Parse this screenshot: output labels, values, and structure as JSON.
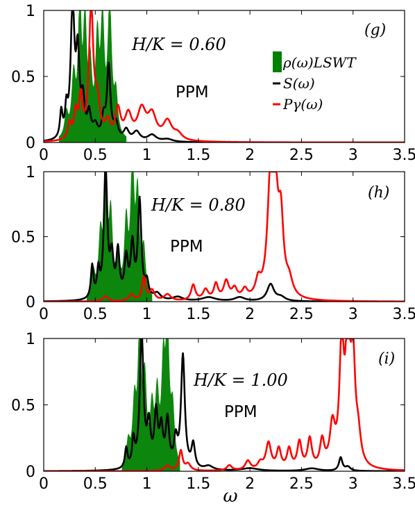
{
  "chart_data": [
    {
      "type": "line",
      "id": "g",
      "panel_label": "(g)",
      "field_label": "H/K = 0.60",
      "phase_label": "PPM",
      "xlim": [
        0,
        3.5
      ],
      "ylim": [
        0,
        1
      ],
      "x_ticks": [
        "0",
        "0.5",
        "1",
        "1.5",
        "2",
        "2.5",
        "3",
        "3.5"
      ],
      "y_ticks": [
        "0",
        "0.5",
        "1"
      ],
      "legend": {
        "placement": "upper-right",
        "entries": [
          {
            "label": "ρ(ω)LSWT",
            "color": "#008000",
            "kind": "fill"
          },
          {
            "label": "S(ω)",
            "color": "#000000",
            "kind": "line"
          },
          {
            "label": "Pγ(ω)",
            "color": "#ff0000",
            "kind": "line"
          }
        ]
      },
      "series": [
        {
          "name": "ρ(ω)LSWT",
          "color": "#008000",
          "kind": "fill",
          "peaks": [
            [
              0.22,
              0.18,
              0.02
            ],
            [
              0.29,
              0.45,
              0.022
            ],
            [
              0.35,
              1.0,
              0.018
            ],
            [
              0.4,
              0.85,
              0.018
            ],
            [
              0.45,
              0.5,
              0.02
            ],
            [
              0.52,
              0.7,
              0.02
            ],
            [
              0.57,
              0.85,
              0.02
            ],
            [
              0.64,
              1.0,
              0.022
            ],
            [
              0.7,
              0.3,
              0.02
            ]
          ],
          "range": [
            0.15,
            0.8
          ]
        },
        {
          "name": "S(ω)",
          "color": "#000000",
          "kind": "line",
          "peaks": [
            [
              0.17,
              0.2,
              0.015
            ],
            [
              0.22,
              0.2,
              0.015
            ],
            [
              0.28,
              1.0,
              0.022
            ],
            [
              0.33,
              0.6,
              0.02
            ],
            [
              0.38,
              0.27,
              0.02
            ],
            [
              0.44,
              0.18,
              0.02
            ],
            [
              0.5,
              0.1,
              0.03
            ],
            [
              0.58,
              0.15,
              0.02
            ],
            [
              0.63,
              0.55,
              0.02
            ],
            [
              0.7,
              0.12,
              0.025
            ],
            [
              0.8,
              0.08,
              0.03
            ],
            [
              0.9,
              0.07,
              0.04
            ],
            [
              1.05,
              0.05,
              0.05
            ],
            [
              1.2,
              0.02,
              0.06
            ]
          ]
        },
        {
          "name": "Pγ(ω)",
          "color": "#ff0000",
          "kind": "line",
          "peaks": [
            [
              0.25,
              0.12,
              0.02
            ],
            [
              0.31,
              0.2,
              0.02
            ],
            [
              0.36,
              0.3,
              0.02
            ],
            [
              0.46,
              1.0,
              0.025
            ],
            [
              0.52,
              0.25,
              0.03
            ],
            [
              0.62,
              0.12,
              0.03
            ],
            [
              0.72,
              0.22,
              0.03
            ],
            [
              0.82,
              0.18,
              0.04
            ],
            [
              0.95,
              0.22,
              0.05
            ],
            [
              1.05,
              0.18,
              0.05
            ],
            [
              1.2,
              0.14,
              0.05
            ],
            [
              1.3,
              0.05,
              0.05
            ]
          ]
        }
      ]
    },
    {
      "type": "line",
      "id": "h",
      "panel_label": "(h)",
      "field_label": "H/K = 0.80",
      "phase_label": "PPM",
      "xlim": [
        0,
        3.5
      ],
      "ylim": [
        0,
        1
      ],
      "x_ticks": [
        "0",
        "0.5",
        "1",
        "1.5",
        "2",
        "2.5",
        "3",
        "3.5"
      ],
      "y_ticks": [
        "0",
        "0.5",
        "1"
      ],
      "series": [
        {
          "name": "ρ(ω)LSWT",
          "color": "#008000",
          "kind": "fill",
          "peaks": [
            [
              0.48,
              0.2,
              0.02
            ],
            [
              0.55,
              0.45,
              0.02
            ],
            [
              0.6,
              1.0,
              0.018
            ],
            [
              0.65,
              0.6,
              0.02
            ],
            [
              0.72,
              0.3,
              0.02
            ],
            [
              0.8,
              0.55,
              0.02
            ],
            [
              0.86,
              1.0,
              0.02
            ],
            [
              0.91,
              0.75,
              0.02
            ],
            [
              0.97,
              0.35,
              0.02
            ]
          ],
          "range": [
            0.42,
            1.05
          ]
        },
        {
          "name": "S(ω)",
          "color": "#000000",
          "kind": "line",
          "peaks": [
            [
              0.47,
              0.25,
              0.015
            ],
            [
              0.53,
              0.2,
              0.015
            ],
            [
              0.6,
              1.0,
              0.02
            ],
            [
              0.66,
              0.3,
              0.02
            ],
            [
              0.72,
              0.35,
              0.018
            ],
            [
              0.8,
              0.3,
              0.02
            ],
            [
              0.86,
              0.4,
              0.02
            ],
            [
              0.93,
              0.75,
              0.02
            ],
            [
              1.0,
              0.12,
              0.02
            ],
            [
              1.1,
              0.05,
              0.04
            ],
            [
              1.3,
              0.03,
              0.06
            ],
            [
              1.6,
              0.03,
              0.08
            ],
            [
              1.9,
              0.03,
              0.06
            ],
            [
              2.2,
              0.13,
              0.04
            ],
            [
              2.3,
              0.03,
              0.05
            ]
          ]
        },
        {
          "name": "Pγ(ω)",
          "color": "#ff0000",
          "kind": "line",
          "peaks": [
            [
              0.6,
              0.04,
              0.03
            ],
            [
              0.85,
              0.05,
              0.03
            ],
            [
              0.97,
              0.18,
              0.02
            ],
            [
              1.05,
              0.08,
              0.03
            ],
            [
              1.2,
              0.05,
              0.04
            ],
            [
              1.45,
              0.12,
              0.025
            ],
            [
              1.57,
              0.08,
              0.03
            ],
            [
              1.67,
              0.12,
              0.025
            ],
            [
              1.77,
              0.14,
              0.03
            ],
            [
              1.85,
              0.08,
              0.03
            ],
            [
              1.95,
              0.07,
              0.03
            ],
            [
              2.08,
              0.12,
              0.03
            ],
            [
              2.2,
              0.9,
              0.035
            ],
            [
              2.25,
              0.6,
              0.03
            ],
            [
              2.3,
              0.55,
              0.03
            ],
            [
              2.38,
              0.12,
              0.04
            ]
          ]
        }
      ]
    },
    {
      "type": "line",
      "id": "i",
      "panel_label": "(i)",
      "field_label": "H/K = 1.00",
      "phase_label": "PPM",
      "xlim": [
        0,
        3.5
      ],
      "ylim": [
        0,
        1
      ],
      "x_ticks": [
        "0",
        "0.5",
        "1",
        "1.5",
        "2",
        "2.5",
        "3",
        "3.5"
      ],
      "y_ticks": [
        "0",
        "0.5",
        "1"
      ],
      "xlabel": "ω",
      "series": [
        {
          "name": "ρ(ω)LSWT",
          "color": "#008000",
          "kind": "fill",
          "peaks": [
            [
              0.82,
              0.18,
              0.02
            ],
            [
              0.88,
              0.45,
              0.02
            ],
            [
              0.93,
              1.0,
              0.02
            ],
            [
              0.98,
              0.6,
              0.02
            ],
            [
              1.05,
              0.4,
              0.02
            ],
            [
              1.1,
              0.5,
              0.02
            ],
            [
              1.16,
              0.7,
              0.02
            ],
            [
              1.2,
              1.0,
              0.02
            ],
            [
              1.25,
              0.4,
              0.02
            ]
          ],
          "range": [
            0.76,
            1.32
          ]
        },
        {
          "name": "S(ω)",
          "color": "#000000",
          "kind": "line",
          "peaks": [
            [
              0.8,
              0.15,
              0.015
            ],
            [
              0.87,
              0.2,
              0.015
            ],
            [
              0.95,
              1.0,
              0.022
            ],
            [
              1.02,
              0.3,
              0.02
            ],
            [
              1.09,
              0.4,
              0.02
            ],
            [
              1.14,
              0.28,
              0.02
            ],
            [
              1.2,
              0.35,
              0.02
            ],
            [
              1.28,
              0.2,
              0.02
            ],
            [
              1.35,
              0.85,
              0.022
            ],
            [
              1.45,
              0.18,
              0.02
            ],
            [
              1.6,
              0.03,
              0.05
            ],
            [
              2.0,
              0.02,
              0.1
            ],
            [
              2.6,
              0.02,
              0.08
            ],
            [
              2.88,
              0.1,
              0.02
            ],
            [
              2.95,
              0.03,
              0.03
            ]
          ]
        },
        {
          "name": "Pγ(ω)",
          "color": "#ff0000",
          "kind": "line",
          "peaks": [
            [
              1.2,
              0.04,
              0.03
            ],
            [
              1.33,
              0.15,
              0.02
            ],
            [
              1.4,
              0.05,
              0.03
            ],
            [
              1.8,
              0.04,
              0.03
            ],
            [
              1.98,
              0.07,
              0.03
            ],
            [
              2.1,
              0.05,
              0.03
            ],
            [
              2.18,
              0.2,
              0.03
            ],
            [
              2.28,
              0.15,
              0.025
            ],
            [
              2.38,
              0.15,
              0.025
            ],
            [
              2.48,
              0.2,
              0.025
            ],
            [
              2.58,
              0.22,
              0.025
            ],
            [
              2.7,
              0.2,
              0.025
            ],
            [
              2.8,
              0.3,
              0.03
            ],
            [
              2.89,
              0.9,
              0.025
            ],
            [
              2.95,
              1.0,
              0.025
            ],
            [
              3.0,
              0.75,
              0.025
            ],
            [
              3.05,
              0.2,
              0.03
            ]
          ]
        }
      ]
    }
  ]
}
